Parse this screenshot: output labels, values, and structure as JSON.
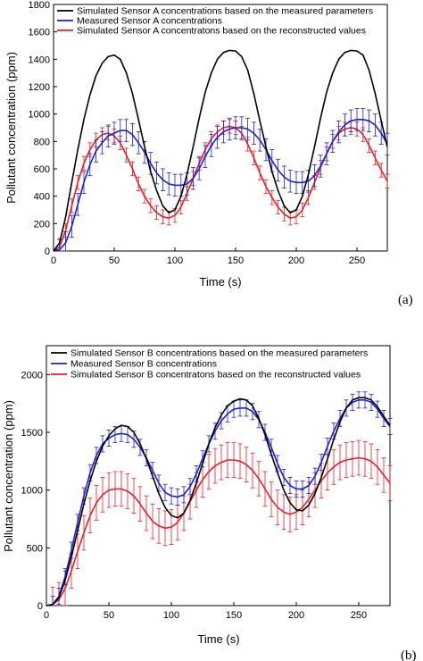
{
  "chart_data": [
    {
      "type": "line",
      "panel_label": "(a)",
      "xlabel": "Time (s)",
      "ylabel": "Pollutant concentration (ppm)",
      "xlim": [
        0,
        275
      ],
      "ylim": [
        0,
        1800
      ],
      "xticks": [
        0,
        50,
        100,
        150,
        200,
        250
      ],
      "yticks": [
        0,
        200,
        400,
        600,
        800,
        1000,
        1200,
        1400,
        1600,
        1800
      ],
      "legend_placement": "top",
      "series": [
        {
          "name": "Simulated Sensor A concentrations based on the measured parameters",
          "color": "#000000",
          "x": [
            0,
            5,
            10,
            15,
            20,
            25,
            30,
            35,
            40,
            45,
            50,
            55,
            60,
            65,
            70,
            75,
            80,
            85,
            90,
            95,
            100,
            105,
            110,
            115,
            120,
            125,
            130,
            135,
            140,
            145,
            150,
            155,
            160,
            165,
            170,
            175,
            180,
            185,
            190,
            195,
            200,
            205,
            210,
            215,
            220,
            225,
            230,
            235,
            240,
            245,
            250,
            255,
            260,
            265,
            270,
            275
          ],
          "y": [
            0,
            60,
            250,
            500,
            740,
            960,
            1140,
            1280,
            1370,
            1420,
            1430,
            1400,
            1300,
            1150,
            960,
            760,
            580,
            440,
            330,
            280,
            300,
            400,
            560,
            760,
            970,
            1160,
            1300,
            1400,
            1450,
            1465,
            1460,
            1420,
            1320,
            1150,
            950,
            760,
            580,
            440,
            330,
            280,
            300,
            400,
            560,
            760,
            970,
            1160,
            1300,
            1400,
            1450,
            1465,
            1460,
            1430,
            1320,
            1150,
            950,
            760
          ]
        },
        {
          "name": "Measured Sensor A concentrations",
          "color": "#1f1fd0",
          "error_bars": true,
          "error": 80,
          "x": [
            0,
            5,
            10,
            15,
            20,
            25,
            30,
            35,
            40,
            45,
            50,
            55,
            60,
            65,
            70,
            75,
            80,
            85,
            90,
            95,
            100,
            105,
            110,
            115,
            120,
            125,
            130,
            135,
            140,
            145,
            150,
            155,
            160,
            165,
            170,
            175,
            180,
            185,
            190,
            195,
            200,
            205,
            210,
            215,
            220,
            225,
            230,
            235,
            240,
            245,
            250,
            255,
            260,
            265,
            270,
            275
          ],
          "y": [
            0,
            10,
            60,
            180,
            340,
            500,
            630,
            730,
            790,
            840,
            860,
            880,
            880,
            850,
            790,
            720,
            640,
            570,
            520,
            490,
            480,
            480,
            490,
            530,
            600,
            690,
            770,
            830,
            870,
            890,
            900,
            900,
            890,
            860,
            810,
            740,
            660,
            590,
            540,
            510,
            500,
            500,
            510,
            550,
            620,
            710,
            800,
            870,
            920,
            950,
            960,
            960,
            950,
            920,
            860,
            780
          ]
        },
        {
          "name": "Simulated Sensor A concentratons based on the reconstructed values",
          "color": "#e8202a",
          "error_bars": true,
          "error": 50,
          "x": [
            0,
            5,
            10,
            15,
            20,
            25,
            30,
            35,
            40,
            45,
            50,
            55,
            60,
            65,
            70,
            75,
            80,
            85,
            90,
            95,
            100,
            105,
            110,
            115,
            120,
            125,
            130,
            135,
            140,
            145,
            150,
            155,
            160,
            165,
            170,
            175,
            180,
            185,
            190,
            195,
            200,
            205,
            210,
            215,
            220,
            225,
            230,
            235,
            240,
            245,
            250,
            255,
            260,
            265,
            270,
            275
          ],
          "y": [
            0,
            30,
            150,
            330,
            500,
            640,
            740,
            810,
            850,
            860,
            840,
            790,
            700,
            600,
            490,
            400,
            330,
            280,
            250,
            240,
            260,
            320,
            420,
            530,
            640,
            740,
            820,
            870,
            900,
            910,
            900,
            860,
            780,
            680,
            570,
            470,
            390,
            320,
            270,
            240,
            250,
            300,
            390,
            500,
            610,
            710,
            800,
            860,
            890,
            900,
            890,
            850,
            770,
            680,
            590,
            510
          ]
        }
      ]
    },
    {
      "type": "line",
      "panel_label": "(b)",
      "xlabel": "Time (s)",
      "ylabel": "Pollutant concentration (ppm)",
      "xlim": [
        0,
        275
      ],
      "ylim": [
        0,
        2250
      ],
      "xticks": [
        0,
        50,
        100,
        150,
        200,
        250
      ],
      "yticks": [
        0,
        500,
        1000,
        1500,
        2000
      ],
      "legend_placement": "top",
      "series": [
        {
          "name": "Simulated Sensor B concentrations based on the measured parameters",
          "color": "#000000",
          "x": [
            0,
            5,
            10,
            15,
            20,
            25,
            30,
            35,
            40,
            45,
            50,
            55,
            60,
            65,
            70,
            75,
            80,
            85,
            90,
            95,
            100,
            105,
            110,
            115,
            120,
            125,
            130,
            135,
            140,
            145,
            150,
            155,
            160,
            165,
            170,
            175,
            180,
            185,
            190,
            195,
            200,
            205,
            210,
            215,
            220,
            225,
            230,
            235,
            240,
            245,
            250,
            255,
            260,
            265,
            270,
            275
          ],
          "y": [
            0,
            10,
            70,
            220,
            420,
            650,
            880,
            1080,
            1250,
            1380,
            1470,
            1530,
            1560,
            1550,
            1500,
            1400,
            1270,
            1120,
            970,
            850,
            780,
            760,
            800,
            910,
            1060,
            1230,
            1400,
            1540,
            1650,
            1730,
            1770,
            1790,
            1780,
            1730,
            1620,
            1480,
            1310,
            1150,
            1000,
            890,
            830,
            820,
            870,
            970,
            1110,
            1270,
            1440,
            1590,
            1710,
            1780,
            1800,
            1800,
            1780,
            1720,
            1640,
            1560
          ]
        },
        {
          "name": "Measured Sensor B concentrations",
          "color": "#1f1fd0",
          "error_bars": true,
          "error": 70,
          "x": [
            0,
            5,
            10,
            15,
            20,
            25,
            30,
            35,
            40,
            45,
            50,
            55,
            60,
            65,
            70,
            75,
            80,
            85,
            90,
            95,
            100,
            105,
            110,
            115,
            120,
            125,
            130,
            135,
            140,
            145,
            150,
            155,
            160,
            165,
            170,
            175,
            180,
            185,
            190,
            195,
            200,
            205,
            210,
            215,
            220,
            225,
            230,
            235,
            240,
            245,
            250,
            255,
            260,
            265,
            270,
            275
          ],
          "y": [
            0,
            10,
            80,
            250,
            480,
            720,
            950,
            1150,
            1300,
            1400,
            1450,
            1480,
            1490,
            1480,
            1440,
            1370,
            1280,
            1170,
            1060,
            980,
            950,
            940,
            960,
            1030,
            1140,
            1270,
            1400,
            1510,
            1600,
            1660,
            1700,
            1710,
            1710,
            1680,
            1610,
            1500,
            1370,
            1230,
            1110,
            1040,
            1010,
            1010,
            1040,
            1120,
            1240,
            1380,
            1510,
            1620,
            1710,
            1760,
            1780,
            1780,
            1760,
            1700,
            1620,
            1550
          ]
        },
        {
          "name": "Simulated Sensor B concentratons based on the reconstructed values",
          "color": "#e8202a",
          "error_bars": true,
          "error": 150,
          "x": [
            0,
            5,
            10,
            15,
            20,
            25,
            30,
            35,
            40,
            45,
            50,
            55,
            60,
            65,
            70,
            75,
            80,
            85,
            90,
            95,
            100,
            105,
            110,
            115,
            120,
            125,
            130,
            135,
            140,
            145,
            150,
            155,
            160,
            165,
            170,
            175,
            180,
            185,
            190,
            195,
            200,
            205,
            210,
            215,
            220,
            225,
            230,
            235,
            240,
            245,
            250,
            255,
            260,
            265,
            270,
            275
          ],
          "y": [
            0,
            10,
            50,
            150,
            300,
            470,
            630,
            780,
            890,
            960,
            1000,
            1010,
            1010,
            990,
            950,
            880,
            800,
            730,
            690,
            670,
            680,
            720,
            800,
            900,
            1000,
            1090,
            1160,
            1210,
            1240,
            1260,
            1260,
            1250,
            1220,
            1170,
            1100,
            1010,
            920,
            850,
            810,
            790,
            810,
            850,
            920,
            1000,
            1080,
            1150,
            1200,
            1240,
            1260,
            1270,
            1280,
            1270,
            1250,
            1200,
            1130,
            1060
          ]
        }
      ]
    }
  ]
}
